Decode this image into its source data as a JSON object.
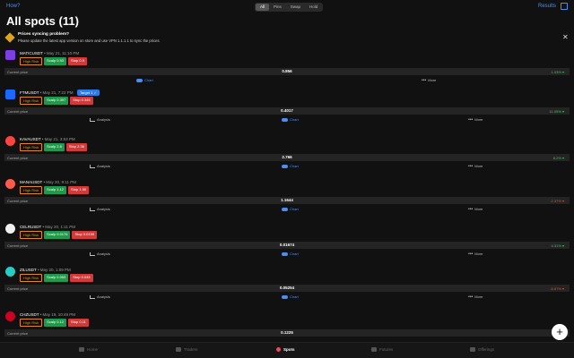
{
  "topbar": {
    "how_label": "How?",
    "segments": [
      "All",
      "Pins",
      "Swap",
      "Hold"
    ],
    "active_segment": 0,
    "results_label": "Results"
  },
  "page_title": "All spots (11)",
  "alert": {
    "title": "Prices syncing problem?",
    "text": "Please update the latest app version on store and use VPN 1.1.1.1 to sync the prices"
  },
  "spots": [
    {
      "symbol": "MATICUSDT",
      "date": "• May 21, 11:10 PM",
      "risk": "High Risk",
      "scalp": "Scalp 0.93",
      "stop": "Stop 0.9",
      "price_label": "Current price",
      "price": "0.856",
      "change": "1.03% ▾",
      "change_color": "#2ecc71",
      "avatar_color": "#7b3fe4",
      "avatar_round": false,
      "actions": [
        "Chart",
        "More"
      ],
      "sg_label": ""
    },
    {
      "symbol": "FTMUSDT",
      "date": "• May 21, 7:22 PM",
      "risk": "High Risk",
      "scalp": "Scalp 0.397",
      "stop": "Stop 0.345",
      "price_label": "Current price",
      "price": "0.4017",
      "change": "11.05% ▾",
      "change_color": "#2ecc71",
      "avatar_color": "#1969ff",
      "avatar_round": false,
      "actions": [
        "Analysis",
        "Chart",
        "More"
      ],
      "sg_label": "Target 1 ✓"
    },
    {
      "symbol": "KAVAUSDT",
      "date": "• May 21, 3:53 PM",
      "risk": "High Risk",
      "scalp": "Scalp 2.8",
      "stop": "Stop 2.36",
      "price_label": "Current price",
      "price": "2.766",
      "change": "8.2% ▾",
      "change_color": "#2ecc71",
      "avatar_color": "#ff433e",
      "avatar_round": true,
      "actions": [
        "Analysis",
        "Chart",
        "More"
      ],
      "sg_label": ""
    },
    {
      "symbol": "MANAUSDT",
      "date": "• May 20, 9:11 PM",
      "risk": "High Risk",
      "scalp": "Scalp 1.12",
      "stop": "Stop 1.00",
      "price_label": "Current price",
      "price": "1.1644",
      "change": "-2.37% ▾",
      "change_color": "#e74c3c",
      "avatar_color": "#ff5a4a",
      "avatar_round": true,
      "actions": [
        "Analysis",
        "Chart",
        "More"
      ],
      "sg_label": ""
    },
    {
      "symbol": "CELRUSDT",
      "date": "• May 20, 1:11 PM",
      "risk": "High Risk",
      "scalp": "Scalp 0.0176",
      "stop": "Stop 0.0159",
      "price_label": "Current price",
      "price": "0.01674",
      "change": "4.31% ▾",
      "change_color": "#2ecc71",
      "avatar_color": "#f0f0f0",
      "avatar_round": true,
      "actions": [
        "Analysis",
        "Chart",
        "More"
      ],
      "sg_label": ""
    },
    {
      "symbol": "ZILUSDT",
      "date": "• May 20, 1:09 PM",
      "risk": "High Risk",
      "scalp": "Scalp 0.053",
      "stop": "Stop 0.045",
      "price_label": "Current price",
      "price": "0.05254",
      "change": "-6.67% ▾",
      "change_color": "#e74c3c",
      "avatar_color": "#29ccc4",
      "avatar_round": true,
      "actions": [
        "Analysis",
        "Chart",
        "More"
      ],
      "sg_label": ""
    },
    {
      "symbol": "CHZUSDT",
      "date": "• May 19, 10:49 PM",
      "risk": "High Risk",
      "scalp": "Scalp 0.12",
      "stop": "Stop 0.11",
      "price_label": "Current price",
      "price": "0.1225",
      "change": "2.5% ▾",
      "change_color": "#2ecc71",
      "avatar_color": "#cd0124",
      "avatar_round": true,
      "actions": [],
      "sg_label": ""
    }
  ],
  "tabs": [
    {
      "label": "Home",
      "icon": "home-icon"
    },
    {
      "label": "Traders",
      "icon": "traders-icon"
    },
    {
      "label": "Spots",
      "icon": "spots-icon"
    },
    {
      "label": "Futures",
      "icon": "futures-icon"
    },
    {
      "label": "Offerings",
      "icon": "offerings-icon"
    }
  ],
  "active_tab": 2,
  "fab_label": "+"
}
